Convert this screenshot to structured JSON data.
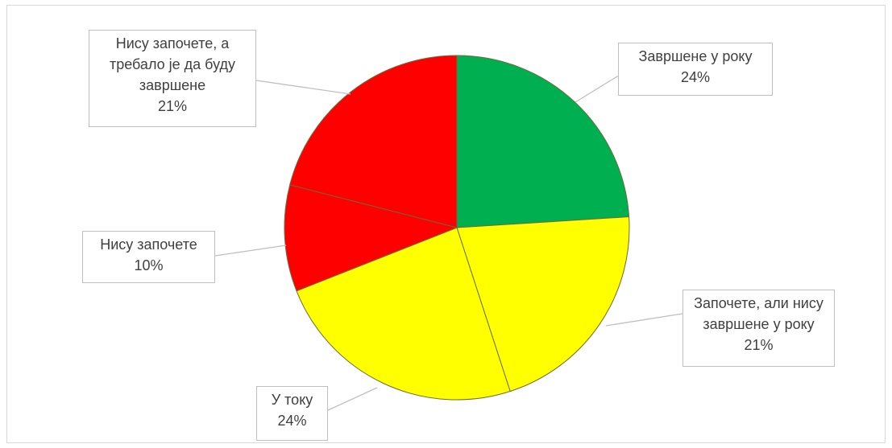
{
  "chart_data": {
    "type": "pie",
    "title": "",
    "slices": [
      {
        "label": "Завршене у року",
        "value": 24,
        "value_label": "24%",
        "color": "#00b050"
      },
      {
        "label": "Започете, али нису завршене у року",
        "value": 21,
        "value_label": "21%",
        "color": "#ffff00"
      },
      {
        "label": "У току",
        "value": 24,
        "value_label": "24%",
        "color": "#ffff00"
      },
      {
        "label": "Нису започете",
        "value": 10,
        "value_label": "10%",
        "color": "#ff0000"
      },
      {
        "label": "Нису започете, а требало је да буду завршене",
        "value": 21,
        "value_label": "21%",
        "color": "#ff0000"
      }
    ],
    "legend": "none",
    "labels": {
      "slice0": {
        "line1": "Завршене у року",
        "pct": "24%"
      },
      "slice1": {
        "line1": "Започете, али нису",
        "line2": "завршене у року",
        "pct": "21%"
      },
      "slice2": {
        "line1": "У току",
        "pct": "24%"
      },
      "slice3": {
        "line1": "Нису започете",
        "pct": "10%"
      },
      "slice4": {
        "line1": "Нису започете, а",
        "line2": "требало је да буду",
        "line3": "завршене",
        "pct": "21%"
      }
    }
  }
}
